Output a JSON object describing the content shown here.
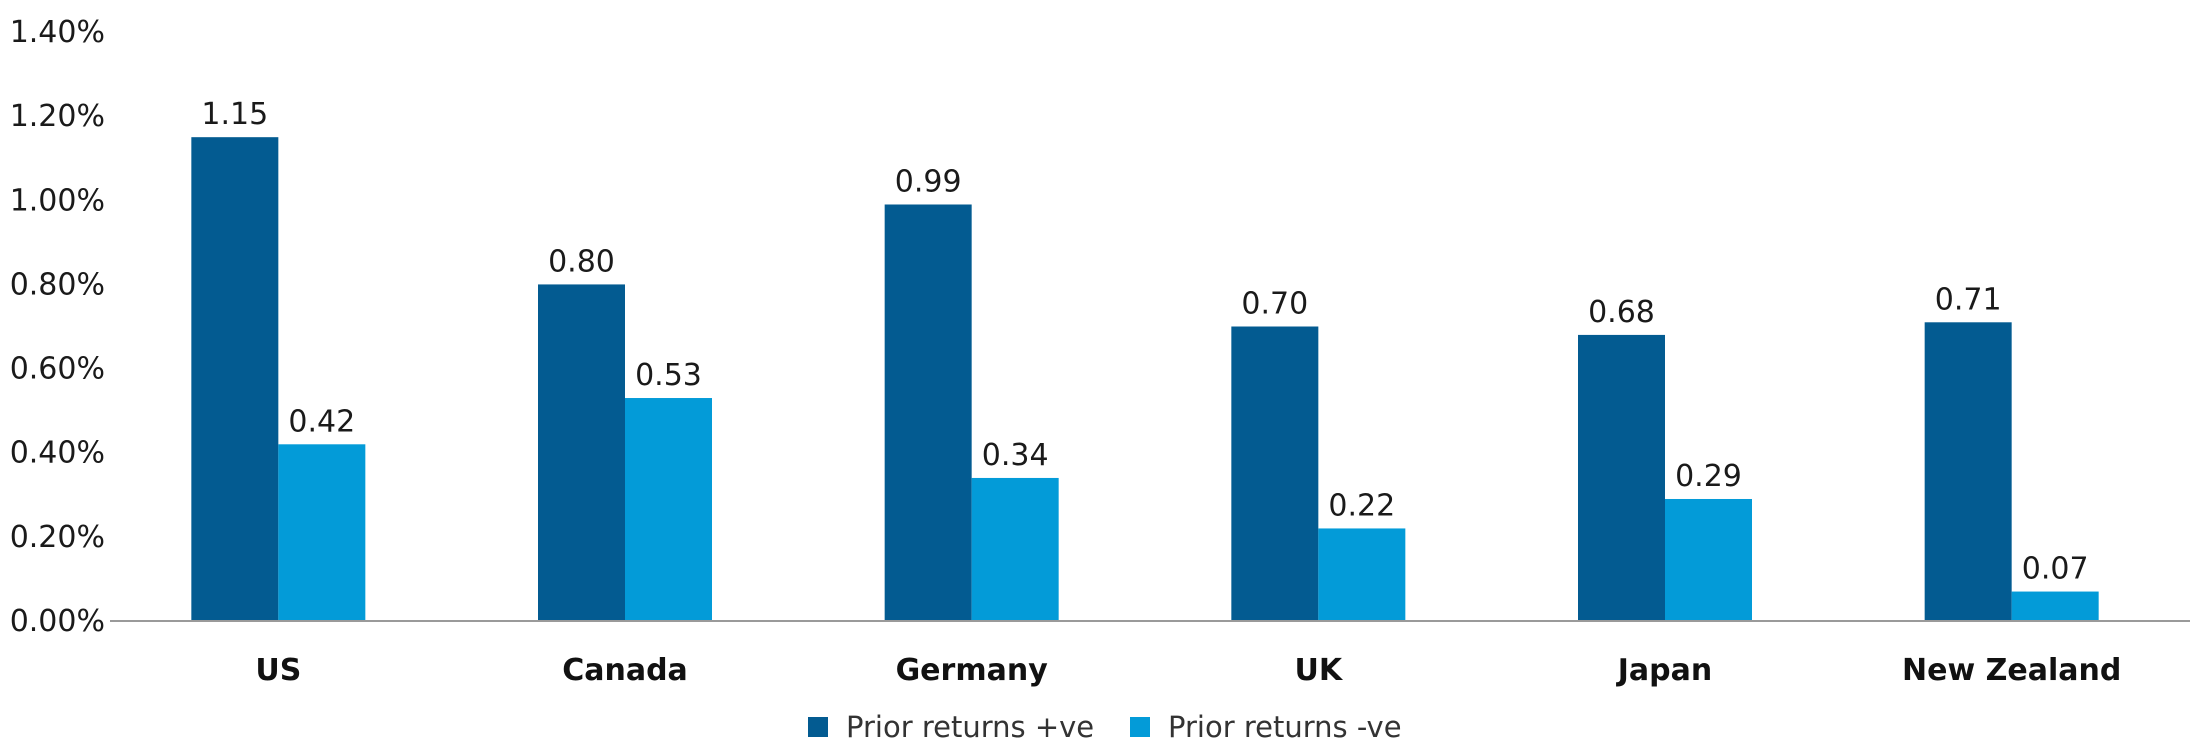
{
  "chart_data": {
    "type": "bar",
    "title": "",
    "xlabel": "",
    "ylabel": "",
    "categories": [
      "US",
      "Canada",
      "Germany",
      "UK",
      "Japan",
      "New Zealand"
    ],
    "series": [
      {
        "name": "Prior returns +ve",
        "color": "#035b91",
        "values": [
          1.15,
          0.8,
          0.99,
          0.7,
          0.68,
          0.71
        ],
        "labels": [
          "1.15",
          "0.80",
          "0.99",
          "0.70",
          "0.68",
          "0.71"
        ]
      },
      {
        "name": "Prior returns -ve",
        "color": "#039bd8",
        "values": [
          0.42,
          0.53,
          0.34,
          0.22,
          0.29,
          0.07
        ],
        "labels": [
          "0.42",
          "0.53",
          "0.34",
          "0.22",
          "0.29",
          "0.07"
        ]
      }
    ],
    "ylim": [
      0,
      1.4
    ],
    "yticks": [
      0,
      0.2,
      0.4,
      0.6,
      0.8,
      1.0,
      1.2,
      1.4
    ],
    "ytick_labels": [
      "0.00%",
      "0.20%",
      "0.40%",
      "0.60%",
      "0.80%",
      "1.00%",
      "1.20%",
      "1.40%"
    ],
    "grid": false,
    "legend_position": "bottom-center",
    "axis_color": "#9a9a9a"
  }
}
